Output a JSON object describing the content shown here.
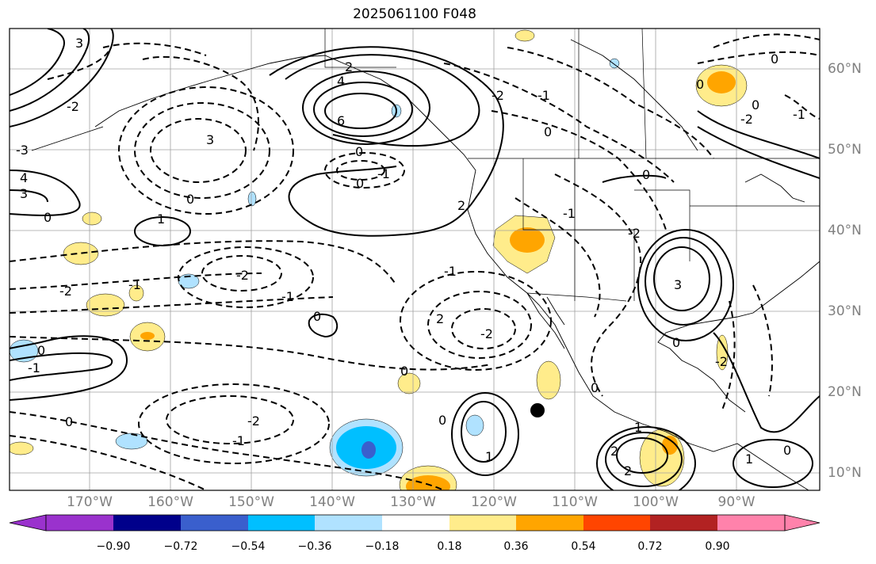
{
  "title": "2025061100 F048",
  "lat_labels": [
    "60°N",
    "50°N",
    "40°N",
    "30°N",
    "20°N",
    "10°N"
  ],
  "lon_labels": [
    "170°W",
    "160°W",
    "150°W",
    "140°W",
    "130°W",
    "120°W",
    "110°W",
    "100°W",
    "90°W"
  ],
  "colorbar": {
    "ticks": [
      "−0.90",
      "−0.72",
      "−0.54",
      "−0.36",
      "−0.18",
      "0.18",
      "0.36",
      "0.54",
      "0.72",
      "0.90"
    ],
    "colors": [
      "#9a32cd",
      "#00008b",
      "#3a5fcd",
      "#00bfff",
      "#b0e2ff",
      "#ffffff",
      "#ffec8b",
      "#ffa500",
      "#ff4500",
      "#b22222",
      "#ff82ab"
    ]
  },
  "contour_labels": {
    "c1": "0",
    "c2": "-2",
    "c3": "3",
    "c4": "-1",
    "c5": "4",
    "c6": "-3",
    "c7": "6",
    "c8": "1",
    "c9": "2"
  },
  "marker": {
    "name": "black-dot"
  }
}
